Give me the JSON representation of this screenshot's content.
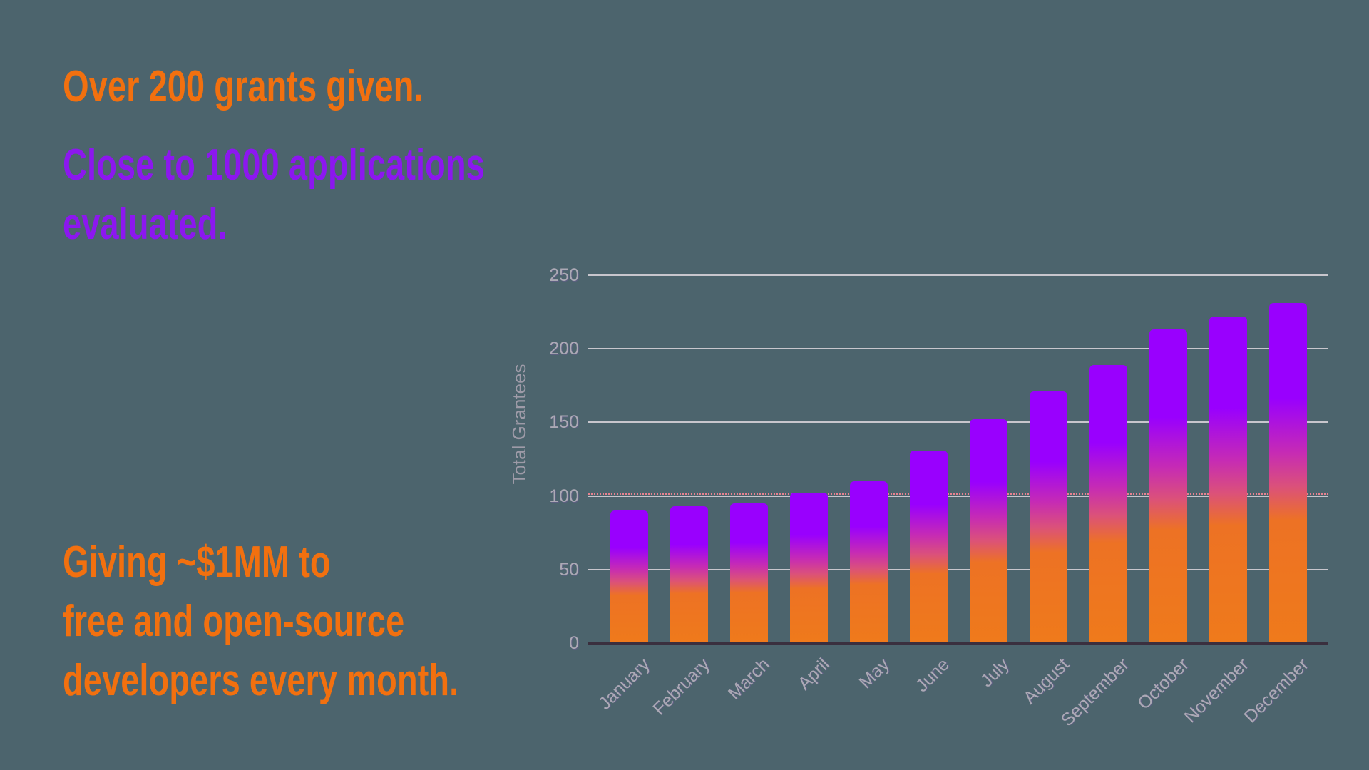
{
  "page": {
    "background_color": "#4C646D"
  },
  "stats": {
    "grants_line": "Over 200 grants given.",
    "grants_color": "#F2700F",
    "applications_lines": [
      "Close to 1000 applications",
      "evaluated."
    ],
    "applications_color": "#8C17EF",
    "giving_lines": [
      "Giving ~$1MM to",
      "free and open-source",
      "developers every month."
    ],
    "giving_color": "#F2700F"
  },
  "chart_data": {
    "type": "bar",
    "title": "",
    "xlabel": "",
    "ylabel": "Total Grantees",
    "categories": [
      "January",
      "February",
      "March",
      "April",
      "May",
      "June",
      "July",
      "August",
      "September",
      "October",
      "November",
      "December"
    ],
    "values": [
      90,
      93,
      95,
      102,
      110,
      131,
      152,
      171,
      189,
      213,
      222,
      231
    ],
    "ylim": [
      0,
      250
    ],
    "yticks": [
      0,
      50,
      100,
      150,
      200,
      250
    ],
    "grid": true,
    "legend": false,
    "annotation_line": {
      "value": 100,
      "style": "dotted",
      "color": "#E8818F"
    },
    "colors": {
      "bar_gradient_top": "#9900FE",
      "bar_gradient_magenta": "#C62BB4",
      "bar_gradient_rose": "#DB517A",
      "bar_gradient_orange": "#ED7224",
      "bar_gradient_bottom": "#EF7A1B",
      "grid_color": "#C8C6CD",
      "axis_color": "#3A2F3E",
      "tick_label_color": "#ACA9B5"
    }
  }
}
